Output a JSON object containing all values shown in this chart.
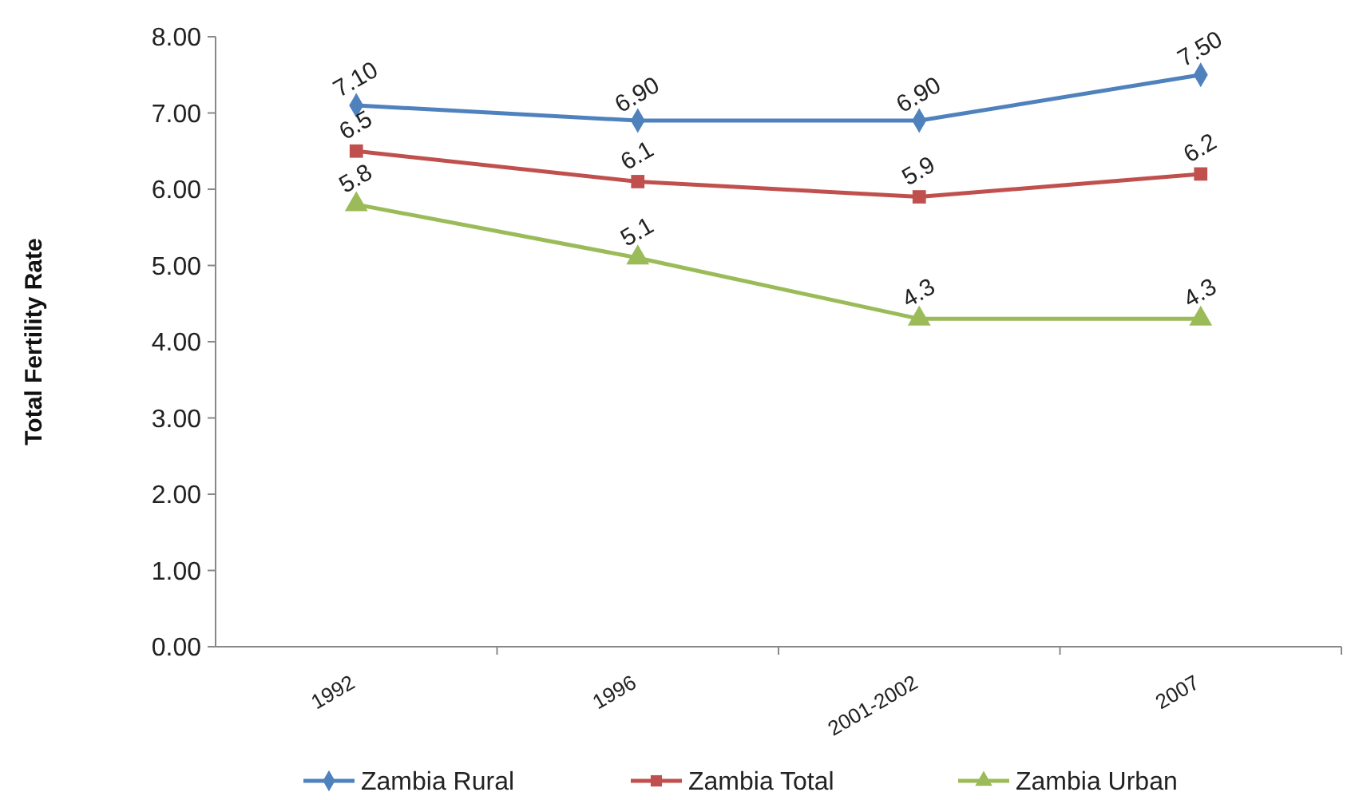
{
  "chart_data": {
    "type": "line",
    "ylabel": "Total Fertility Rate",
    "categories": [
      "1992",
      "1996",
      "2001-2002",
      "2007"
    ],
    "ylim": [
      0,
      8
    ],
    "yticks": [
      {
        "value": 0,
        "label": "0.00"
      },
      {
        "value": 1,
        "label": "1.00"
      },
      {
        "value": 2,
        "label": "2.00"
      },
      {
        "value": 3,
        "label": "3.00"
      },
      {
        "value": 4,
        "label": "4.00"
      },
      {
        "value": 5,
        "label": "5.00"
      },
      {
        "value": 6,
        "label": "6.00"
      },
      {
        "value": 7,
        "label": "7.00"
      },
      {
        "value": 8,
        "label": "8.00"
      }
    ],
    "grid": false,
    "legend": "bottom",
    "line_style": "solid",
    "series": [
      {
        "name": "Zambia Rural",
        "color": "#4f81bd",
        "marker": "diamond",
        "values": [
          7.1,
          6.9,
          6.9,
          7.5
        ],
        "value_labels": [
          "7.10",
          "6.90",
          "6.90",
          "7.50"
        ]
      },
      {
        "name": "Zambia Total",
        "color": "#c0504d",
        "marker": "square",
        "values": [
          6.5,
          6.1,
          5.9,
          6.2
        ],
        "value_labels": [
          "6.5",
          "6.1",
          "5.9",
          "6.2"
        ]
      },
      {
        "name": "Zambia Urban",
        "color": "#9bbb59",
        "marker": "triangle",
        "values": [
          5.8,
          5.1,
          4.3,
          4.3
        ],
        "value_labels": [
          "5.8",
          "5.1",
          "4.3",
          "4.3"
        ]
      }
    ]
  }
}
